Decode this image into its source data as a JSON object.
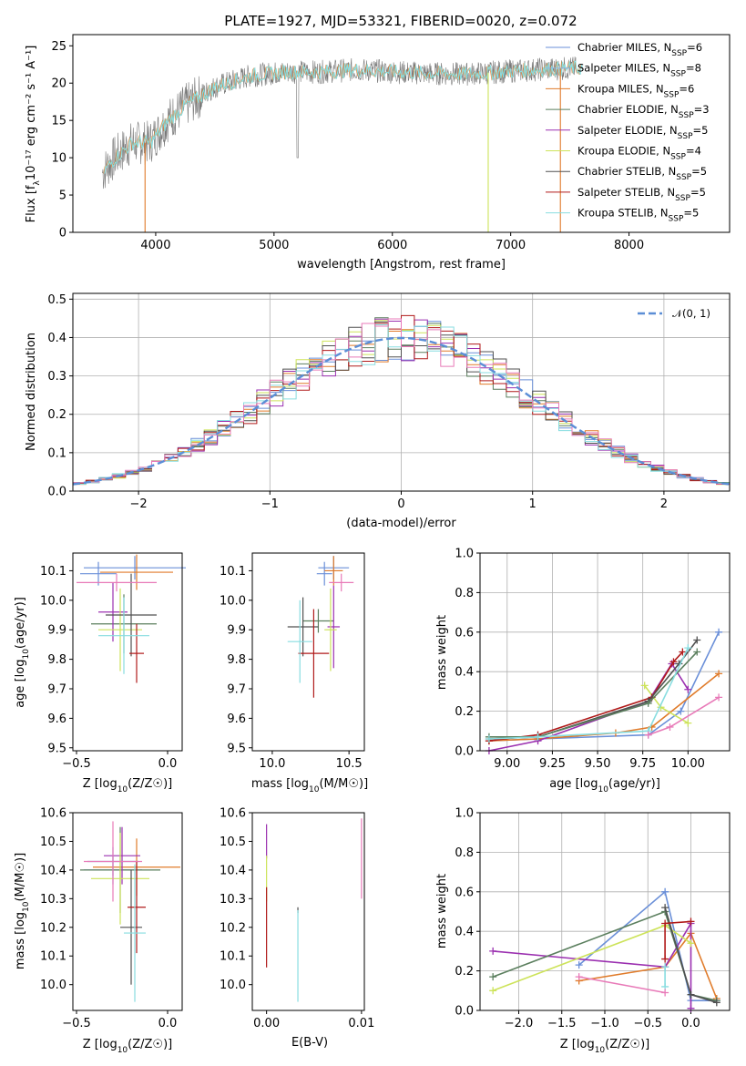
{
  "chart_data": [
    {
      "panel": "spectrum",
      "type": "line",
      "title": "PLATE=1927, MJD=53321, FIBERID=0020, z=0.072",
      "xlabel": "wavelength [Angstrom, rest frame]",
      "ylabel": "Flux [fλ10⁻¹⁷ erg cm⁻² s⁻¹ A⁻¹]",
      "xlim": [
        3300,
        8850
      ],
      "ylim": [
        0,
        26.5
      ],
      "xticks": [
        4000,
        5000,
        6000,
        7000,
        8000
      ],
      "yticks": [
        0,
        5,
        10,
        15,
        20,
        25
      ],
      "legend": [
        "Chabrier MILES, N_SSP=6",
        "Salpeter MILES, N_SSP=8",
        "Kroupa MILES, N_SSP=6",
        "Chabrier ELODIE, N_SSP=3",
        "Salpeter ELODIE, N_SSP=5",
        "Kroupa ELODIE, N_SSP=4",
        "Chabrier STELIB, N_SSP=5",
        "Salpeter STELIB, N_SSP=5",
        "Kroupa STELIB, N_SSP=5"
      ],
      "legend_labels": [
        {
          "base": "Chabrier MILES, N",
          "sub": "SSP",
          "tail": "=6"
        },
        {
          "base": "Salpeter MILES, N",
          "sub": "SSP",
          "tail": "=8"
        },
        {
          "base": "Kroupa MILES, N",
          "sub": "SSP",
          "tail": "=6"
        },
        {
          "base": "Chabrier ELODIE, N",
          "sub": "SSP",
          "tail": "=3"
        },
        {
          "base": "Salpeter ELODIE, N",
          "sub": "SSP",
          "tail": "=5"
        },
        {
          "base": "Kroupa ELODIE, N",
          "sub": "SSP",
          "tail": "=4"
        },
        {
          "base": "Chabrier STELIB, N",
          "sub": "SSP",
          "tail": "=5"
        },
        {
          "base": "Salpeter STELIB, N",
          "sub": "SSP",
          "tail": "=5"
        },
        {
          "base": "Kroupa STELIB, N",
          "sub": "SSP",
          "tail": "=5"
        }
      ],
      "legend_placement": "upper-right",
      "continuum": {
        "x": [
          3550,
          3650,
          3800,
          3950,
          4100,
          4250,
          4500,
          4800,
          5100,
          5400,
          5700,
          6000,
          6300,
          6600,
          6900,
          7200,
          7500
        ],
        "y": [
          8,
          10,
          12,
          12,
          15,
          17,
          19.5,
          21,
          21.5,
          21.5,
          21.8,
          21.5,
          21.3,
          21.2,
          21.5,
          21.8,
          22
        ]
      },
      "spikes": [
        {
          "x": 3910,
          "y": 0
        },
        {
          "x": 6810,
          "y": 0
        },
        {
          "x": 7420,
          "y": 0
        }
      ]
    },
    {
      "panel": "residual-histogram",
      "type": "step",
      "xlabel": "(data-model)/error",
      "ylabel": "Normed distribution",
      "xlim": [
        -2.5,
        2.5
      ],
      "ylim": [
        0,
        0.515
      ],
      "xticks": [
        -2,
        -1,
        0,
        1,
        2
      ],
      "yticks": [
        0,
        0.1,
        0.2,
        0.3,
        0.4,
        0.5
      ],
      "grid": true,
      "bin_width": 0.1,
      "gaussian_label": "𝒩(0, 1)",
      "legend_placement": "upper-right"
    },
    {
      "panel": "age-vs-Z",
      "type": "errorbar",
      "xlabel_base": "Z [log",
      "xlabel_sub": "10",
      "xlabel_tail": "(Z/Z☉)]",
      "ylabel_base": "age  [log",
      "ylabel_sub": "10",
      "ylabel_tail": "(age/yr)]",
      "xlim": [
        -0.52,
        0.08
      ],
      "ylim": [
        9.49,
        10.16
      ],
      "xticks": [
        -0.5,
        0.0
      ],
      "yticks": [
        9.5,
        9.6,
        9.7,
        9.8,
        9.9,
        10.0,
        10.1
      ],
      "points": [
        {
          "model": "Chabrier MILES",
          "x": -0.18,
          "y": 10.11,
          "xerr": 0.28,
          "yerr": 0.04
        },
        {
          "model": "Salpeter MILES",
          "x": -0.38,
          "y": 10.09,
          "xerr": 0.1,
          "yerr": 0.04
        },
        {
          "model": "Kroupa MILES",
          "x": -0.17,
          "y": 10.095,
          "xerr": 0.2,
          "yerr": 0.06
        },
        {
          "model": "Chabrier ELODIE",
          "x": -0.24,
          "y": 9.92,
          "xerr": 0.18,
          "yerr": 0.1
        },
        {
          "model": "Salpeter ELODIE",
          "x": -0.3,
          "y": 9.96,
          "xerr": 0.08,
          "yerr": 0.1
        },
        {
          "model": "Kroupa ELODIE",
          "x": -0.26,
          "y": 9.9,
          "xerr": 0.12,
          "yerr": 0.14
        },
        {
          "model": "Chabrier STELIB",
          "x": -0.2,
          "y": 9.95,
          "xerr": 0.14,
          "yerr": 0.14
        },
        {
          "model": "Salpeter STELIB",
          "x": -0.17,
          "y": 9.82,
          "xerr": 0.04,
          "yerr": 0.1
        },
        {
          "model": "Kroupa STELIB",
          "x": -0.24,
          "y": 9.88,
          "xerr": 0.14,
          "yerr": 0.13
        },
        {
          "model": "pink",
          "x": -0.28,
          "y": 10.06,
          "xerr": 0.22,
          "yerr": 0.03
        }
      ]
    },
    {
      "panel": "age-vs-mass",
      "type": "errorbar",
      "xlabel_base": "mass [log",
      "xlabel_sub": "10",
      "xlabel_tail": "(M/M☉)]",
      "xlim": [
        9.87,
        10.6
      ],
      "ylim": [
        9.49,
        10.16
      ],
      "xticks": [
        10.0,
        10.5
      ],
      "yticks": [
        9.5,
        9.6,
        9.7,
        9.8,
        9.9,
        10.0,
        10.1
      ],
      "points": [
        {
          "model": "Chabrier MILES",
          "x": 10.4,
          "y": 10.11,
          "xerr": 0.1,
          "yerr": 0.04
        },
        {
          "model": "Salpeter MILES",
          "x": 10.34,
          "y": 10.09,
          "xerr": 0.05,
          "yerr": 0.04
        },
        {
          "model": "Kroupa MILES",
          "x": 10.4,
          "y": 10.1,
          "xerr": 0.06,
          "yerr": 0.05
        },
        {
          "model": "Chabrier ELODIE",
          "x": 10.3,
          "y": 9.93,
          "xerr": 0.1,
          "yerr": 0.04
        },
        {
          "model": "Salpeter ELODIE",
          "x": 10.4,
          "y": 9.91,
          "xerr": 0.04,
          "yerr": 0.14
        },
        {
          "model": "Kroupa ELODIE",
          "x": 10.38,
          "y": 9.9,
          "xerr": 0.04,
          "yerr": 0.14
        },
        {
          "model": "Chabrier STELIB",
          "x": 10.2,
          "y": 9.91,
          "xerr": 0.1,
          "yerr": 0.1
        },
        {
          "model": "Salpeter STELIB",
          "x": 10.27,
          "y": 9.82,
          "xerr": 0.1,
          "yerr": 0.15
        },
        {
          "model": "Kroupa STELIB",
          "x": 10.18,
          "y": 9.86,
          "xerr": 0.08,
          "yerr": 0.14
        },
        {
          "model": "pink",
          "x": 10.45,
          "y": 10.06,
          "xerr": 0.08,
          "yerr": 0.03
        }
      ]
    },
    {
      "panel": "mass-weight-vs-age",
      "type": "line",
      "xlabel_base": "age  [log",
      "xlabel_sub": "10",
      "xlabel_tail": "(age/yr)]",
      "ylabel": "mass weight",
      "xlim": [
        8.85,
        10.23
      ],
      "ylim": [
        0,
        1.0
      ],
      "xticks": [
        9.0,
        9.25,
        9.5,
        9.75,
        10.0
      ],
      "yticks": [
        0,
        0.2,
        0.4,
        0.6,
        0.8,
        1.0
      ],
      "grid": true,
      "series": [
        {
          "model": "Chabrier MILES",
          "x": [
            8.9,
            9.17,
            9.78,
            9.96,
            10.17
          ],
          "y": [
            0.05,
            0.06,
            0.08,
            0.2,
            0.6
          ]
        },
        {
          "model": "Kroupa MILES",
          "x": [
            8.9,
            9.17,
            9.6,
            9.8,
            10.17
          ],
          "y": [
            0.05,
            0.06,
            0.09,
            0.12,
            0.39
          ]
        },
        {
          "model": "Salpeter ELODIE",
          "x": [
            8.9,
            9.17,
            9.78,
            9.91,
            10.0
          ],
          "y": [
            0.0,
            0.05,
            0.25,
            0.44,
            0.31
          ]
        },
        {
          "model": "Kroupa ELODIE",
          "x": [
            9.76,
            9.85,
            10.0
          ],
          "y": [
            0.33,
            0.22,
            0.14
          ]
        },
        {
          "model": "Salpeter STELIB",
          "x": [
            8.9,
            9.17,
            9.8,
            9.92,
            9.97
          ],
          "y": [
            0.05,
            0.08,
            0.27,
            0.45,
            0.5
          ]
        },
        {
          "model": "Chabrier STELIB",
          "x": [
            8.9,
            9.17,
            9.78,
            9.95,
            10.05
          ],
          "y": [
            0.06,
            0.07,
            0.25,
            0.44,
            0.56
          ]
        },
        {
          "model": "Chabrier ELODIE",
          "x": [
            8.9,
            9.17,
            9.78,
            10.05
          ],
          "y": [
            0.07,
            0.07,
            0.24,
            0.5
          ]
        },
        {
          "model": "Kroupa STELIB",
          "x": [
            8.9,
            9.17,
            9.78,
            10.0
          ],
          "y": [
            0.06,
            0.07,
            0.1,
            0.52
          ]
        },
        {
          "model": "pink",
          "x": [
            9.78,
            9.9,
            10.17
          ],
          "y": [
            0.08,
            0.12,
            0.27
          ]
        }
      ]
    },
    {
      "panel": "mass-vs-Z",
      "type": "errorbar",
      "xlabel_base": "Z [log",
      "xlabel_sub": "10",
      "xlabel_tail": "(Z/Z☉)]",
      "ylabel_base": "mass [log",
      "ylabel_sub": "10",
      "ylabel_tail": "(M/M☉)]",
      "xlim": [
        -0.52,
        0.08
      ],
      "ylim": [
        9.91,
        10.6
      ],
      "xticks": [
        -0.5,
        0.0
      ],
      "yticks": [
        10.0,
        10.1,
        10.2,
        10.3,
        10.4,
        10.5,
        10.6
      ],
      "points": [
        {
          "model": "Chabrier MILES",
          "x": -0.3,
          "y": 10.4,
          "xerr": 0.16,
          "yerr": 0.05
        },
        {
          "model": "Salpeter MILES",
          "x": -0.3,
          "y": 10.43,
          "xerr": 0.14,
          "yerr": 0.05
        },
        {
          "model": "Kroupa MILES",
          "x": -0.17,
          "y": 10.41,
          "xerr": 0.24,
          "yerr": 0.1
        },
        {
          "model": "Chabrier ELODIE",
          "x": -0.26,
          "y": 10.4,
          "xerr": 0.22,
          "yerr": 0.15
        },
        {
          "model": "Salpeter ELODIE",
          "x": -0.25,
          "y": 10.45,
          "xerr": 0.1,
          "yerr": 0.1
        },
        {
          "model": "Kroupa ELODIE",
          "x": -0.26,
          "y": 10.37,
          "xerr": 0.16,
          "yerr": 0.16
        },
        {
          "model": "Chabrier STELIB",
          "x": -0.2,
          "y": 10.2,
          "xerr": 0.06,
          "yerr": 0.2
        },
        {
          "model": "Salpeter STELIB",
          "x": -0.17,
          "y": 10.27,
          "xerr": 0.05,
          "yerr": 0.16
        },
        {
          "model": "Kroupa STELIB",
          "x": -0.18,
          "y": 10.18,
          "xerr": 0.06,
          "yerr": 0.24
        },
        {
          "model": "pink",
          "x": -0.3,
          "y": 10.43,
          "xerr": 0.16,
          "yerr": 0.14
        }
      ]
    },
    {
      "panel": "mass-vs-EBV",
      "type": "errorbar",
      "xlabel": "E(B-V)",
      "xlim": [
        -0.0015,
        0.0103
      ],
      "ylim": [
        9.91,
        10.6
      ],
      "xticks": [
        0.0,
        0.01
      ],
      "xtick_labels": [
        "0.00",
        "0.01"
      ],
      "yticks": [
        10.0,
        10.1,
        10.2,
        10.3,
        10.4,
        10.5,
        10.6
      ],
      "points": [
        {
          "model": "Salpeter ELODIE",
          "x": 0.0,
          "y": 10.5,
          "yerr": 0.06
        },
        {
          "model": "Kroupa ELODIE",
          "x": 0.0,
          "y": 10.37,
          "yerr": 0.08
        },
        {
          "model": "Salpeter STELIB",
          "x": 0.0,
          "y": 10.2,
          "yerr": 0.14
        },
        {
          "model": "Chabrier STELIB",
          "x": 0.0033,
          "y": 10.26,
          "yerr": 0.01
        },
        {
          "model": "Kroupa STELIB",
          "x": 0.0033,
          "y": 10.1,
          "yerr": 0.16
        },
        {
          "model": "pink",
          "x": 0.01,
          "y": 10.44,
          "yerr": 0.14
        }
      ]
    },
    {
      "panel": "mass-weight-vs-Z",
      "type": "line",
      "xlabel_base": "Z [log",
      "xlabel_sub": "10",
      "xlabel_tail": "(Z/Z☉)]",
      "ylabel": "mass weight",
      "xlim": [
        -2.45,
        0.45
      ],
      "ylim": [
        0,
        1.0
      ],
      "xticks": [
        -2.0,
        -1.5,
        -1.0,
        -0.5,
        0.0
      ],
      "yticks": [
        0,
        0.2,
        0.4,
        0.6,
        0.8,
        1.0
      ],
      "grid": true,
      "series": [
        {
          "model": "Chabrier MILES",
          "x": [
            -1.3,
            -0.3,
            0.0,
            0.3
          ],
          "y": [
            0.23,
            0.6,
            0.05,
            0.05
          ]
        },
        {
          "model": "Kroupa MILES",
          "x": [
            -1.3,
            -0.3,
            0.0,
            0.3
          ],
          "y": [
            0.15,
            0.22,
            0.39,
            0.06
          ]
        },
        {
          "model": "Salpeter ELODIE",
          "x": [
            -2.3,
            -0.3,
            0.0,
            0.0
          ],
          "y": [
            0.3,
            0.22,
            0.44,
            0.01
          ]
        },
        {
          "model": "Kroupa ELODIE",
          "x": [
            -2.3,
            -0.3,
            0.0
          ],
          "y": [
            0.1,
            0.43,
            0.34
          ]
        },
        {
          "model": "Chabrier ELODIE",
          "x": [
            -2.3,
            -0.3,
            0.0,
            0.3
          ],
          "y": [
            0.17,
            0.5,
            0.08,
            0.05
          ]
        },
        {
          "model": "Chabrier STELIB",
          "x": [
            -0.3,
            0.0,
            0.3
          ],
          "y": [
            0.52,
            0.08,
            0.04
          ]
        },
        {
          "model": "Salpeter STELIB",
          "x": [
            -0.3,
            -0.3,
            0.0
          ],
          "y": [
            0.26,
            0.44,
            0.45
          ]
        },
        {
          "model": "Kroupa STELIB",
          "x": [
            -0.3,
            -0.3
          ],
          "y": [
            0.22,
            0.12
          ]
        },
        {
          "model": "pink",
          "x": [
            -1.3,
            -0.3
          ],
          "y": [
            0.17,
            0.09
          ]
        }
      ]
    }
  ],
  "colors": {
    "Chabrier MILES": "#6a8fd8",
    "Salpeter MILES": "#6a8fd8",
    "Kroupa MILES": "#e07b2a",
    "Chabrier ELODIE": "#5b7f5e",
    "Salpeter ELODIE": "#9b30b0",
    "Kroupa ELODIE": "#cde35a",
    "Chabrier STELIB": "#505050",
    "Salpeter STELIB": "#b01a1a",
    "Kroupa STELIB": "#88dde0",
    "pink": "#e87ab8",
    "legend_swatch_2": "#8ab6e0",
    "gaussian": "#5b8ed6",
    "grid": "#b0b0b0"
  }
}
